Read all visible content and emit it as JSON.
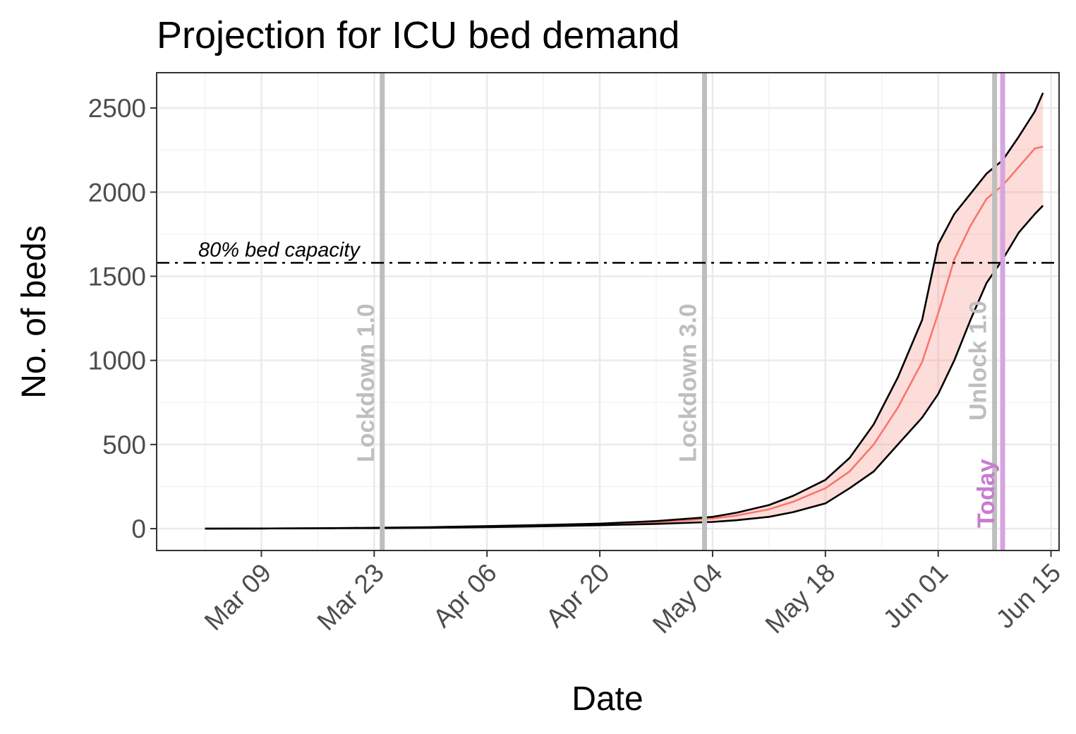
{
  "chart_data": {
    "type": "area",
    "title": "Projection for ICU bed demand",
    "xlabel": "Date",
    "ylabel": "No. of beds",
    "x_range": [
      "2020-02-25",
      "2020-06-16"
    ],
    "ylim": [
      -130,
      2710
    ],
    "grid": true,
    "x_ticks": [
      {
        "date": "2020-03-09",
        "label": "Mar 09"
      },
      {
        "date": "2020-03-23",
        "label": "Mar 23"
      },
      {
        "date": "2020-04-06",
        "label": "Apr 06"
      },
      {
        "date": "2020-04-20",
        "label": "Apr 20"
      },
      {
        "date": "2020-05-04",
        "label": "May 04"
      },
      {
        "date": "2020-05-18",
        "label": "May 18"
      },
      {
        "date": "2020-06-01",
        "label": "Jun 01"
      },
      {
        "date": "2020-06-15",
        "label": "Jun 15"
      }
    ],
    "y_ticks": [
      0,
      500,
      1000,
      1500,
      2000,
      2500
    ],
    "x": [
      "2020-03-02",
      "2020-03-09",
      "2020-03-16",
      "2020-03-23",
      "2020-03-30",
      "2020-04-06",
      "2020-04-13",
      "2020-04-20",
      "2020-04-27",
      "2020-05-04",
      "2020-05-07",
      "2020-05-11",
      "2020-05-14",
      "2020-05-18",
      "2020-05-21",
      "2020-05-24",
      "2020-05-27",
      "2020-05-30",
      "2020-06-01",
      "2020-06-03",
      "2020-06-05",
      "2020-06-07",
      "2020-06-09",
      "2020-06-11",
      "2020-06-13",
      "2020-06-14"
    ],
    "series": [
      {
        "role": "upper",
        "values": [
          0,
          1,
          2,
          5,
          9,
          15,
          22,
          30,
          45,
          70,
          95,
          140,
          195,
          290,
          420,
          620,
          900,
          1240,
          1690,
          1870,
          1990,
          2110,
          2190,
          2330,
          2480,
          2590
        ]
      },
      {
        "role": "median",
        "values": [
          0,
          1,
          2,
          4,
          7,
          12,
          18,
          26,
          38,
          60,
          78,
          115,
          160,
          240,
          340,
          500,
          720,
          990,
          1280,
          1600,
          1800,
          1960,
          2040,
          2150,
          2260,
          2270
        ]
      },
      {
        "role": "lower",
        "values": [
          0,
          1,
          2,
          3,
          5,
          9,
          14,
          20,
          28,
          40,
          50,
          70,
          98,
          150,
          240,
          340,
          500,
          660,
          800,
          1000,
          1240,
          1460,
          1600,
          1760,
          1870,
          1920
        ]
      }
    ],
    "band_color": "#f8766d",
    "median_color": "#f8766d",
    "bound_color": "#000000",
    "capacity": {
      "value": 1580,
      "label": "80% bed capacity"
    },
    "events": [
      {
        "date": "2020-03-24",
        "label": "Lockdown 1.0",
        "color": "#bebebe",
        "label_color": "#bebebe"
      },
      {
        "date": "2020-05-03",
        "label": "Lockdown 3.0",
        "color": "#bebebe",
        "label_color": "#bebebe"
      },
      {
        "date": "2020-06-08",
        "label": "Unlock 1.0",
        "color": "#bebebe",
        "label_color": "#bebebe"
      },
      {
        "date": "2020-06-09",
        "label": "Today",
        "color": "#d7a4e0",
        "label_color": "#c77cd0"
      }
    ]
  }
}
